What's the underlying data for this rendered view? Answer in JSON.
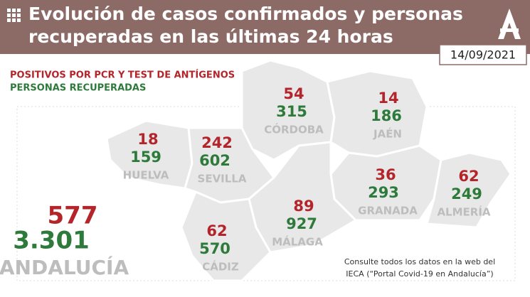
{
  "header": {
    "title_line1": "Evolución de casos confirmados y personas",
    "title_line2": "recuperadas en las últimas 24 horas",
    "date": "14/09/2021"
  },
  "legend": {
    "positives": "POSITIVOS POR PCR Y TEST DE ANTÍGENOS",
    "recovered": "PERSONAS RECUPERADAS"
  },
  "provinces": [
    {
      "name": "HUELVA",
      "positives": "18",
      "recovered": "159"
    },
    {
      "name": "SEVILLA",
      "positives": "242",
      "recovered": "602"
    },
    {
      "name": "CÓRDOBA",
      "positives": "54",
      "recovered": "315"
    },
    {
      "name": "JAÉN",
      "positives": "14",
      "recovered": "186"
    },
    {
      "name": "GRANADA",
      "positives": "36",
      "recovered": "293"
    },
    {
      "name": "ALMERÍA",
      "positives": "62",
      "recovered": "249"
    },
    {
      "name": "MÁLAGA",
      "positives": "89",
      "recovered": "927"
    },
    {
      "name": "CÁDIZ",
      "positives": "62",
      "recovered": "570"
    }
  ],
  "total": {
    "name": "ANDALUCÍA",
    "positives": "577",
    "recovered": "3.301"
  },
  "footnote": {
    "line1": "Consulte todos los datos en la web del",
    "line2": "IECA (“Portal Covid-19 en Andalucía”)"
  }
}
